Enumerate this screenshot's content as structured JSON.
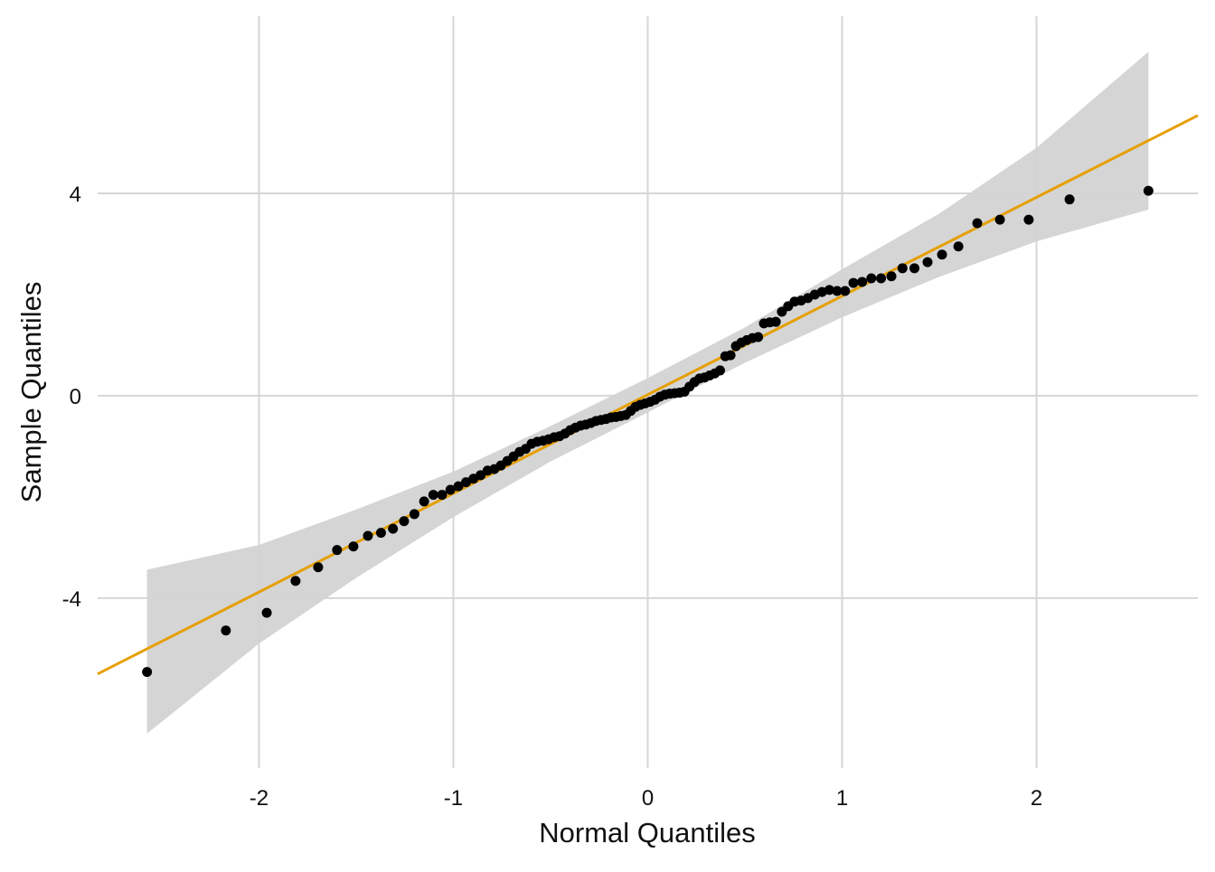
{
  "chart_data": {
    "type": "scatter",
    "title": "",
    "xlabel": "Normal Quantiles",
    "ylabel": "Sample Quantiles",
    "xlim": [
      -2.83,
      2.83
    ],
    "ylim": [
      -7.36,
      7.5
    ],
    "x_ticks": [
      -2,
      -1,
      0,
      1,
      2
    ],
    "x_tick_labels": [
      "-2",
      "-1",
      "0",
      "1",
      "2"
    ],
    "y_ticks": [
      -4,
      0,
      4
    ],
    "y_tick_labels": [
      "-4",
      "0",
      "4"
    ],
    "grid": true,
    "colors": {
      "points": "#000000",
      "reference_line": "#E69F00",
      "band": "#D3D3D3",
      "grid": "#D6D6D6"
    },
    "reference_line": {
      "intercept": 0.02,
      "slope": 1.95
    },
    "confidence_band": {
      "x": [
        -2.576,
        -2.0,
        -1.5,
        -1.0,
        -0.5,
        0,
        0.5,
        1.0,
        1.5,
        2.0,
        2.576
      ],
      "lower": [
        -6.68,
        -4.9,
        -3.6,
        -2.4,
        -1.3,
        -0.33,
        0.65,
        1.55,
        2.35,
        3.05,
        3.68
      ],
      "upper": [
        -3.44,
        -2.95,
        -2.25,
        -1.5,
        -0.6,
        0.35,
        1.35,
        2.5,
        3.6,
        4.9,
        6.8
      ]
    },
    "points": {
      "x": [
        -2.5758,
        -2.1701,
        -1.96,
        -1.8119,
        -1.6954,
        -1.5982,
        -1.5141,
        -1.4395,
        -1.3722,
        -1.3106,
        -1.2536,
        -1.2004,
        -1.1503,
        -1.1031,
        -1.0581,
        -1.0152,
        -0.9741,
        -0.9346,
        -0.8965,
        -0.8596,
        -0.8239,
        -0.7892,
        -0.7554,
        -0.7225,
        -0.6903,
        -0.6588,
        -0.628,
        -0.5978,
        -0.5681,
        -0.5388,
        -0.5101,
        -0.4817,
        -0.4538,
        -0.4261,
        -0.3989,
        -0.3719,
        -0.3451,
        -0.3186,
        -0.2924,
        -0.2663,
        -0.2404,
        -0.2147,
        -0.1891,
        -0.1637,
        -0.1383,
        -0.113,
        -0.0878,
        -0.0627,
        -0.0376,
        -0.0125,
        0.0125,
        0.0376,
        0.0627,
        0.0878,
        0.113,
        0.1383,
        0.1637,
        0.1891,
        0.2147,
        0.2404,
        0.2663,
        0.2924,
        0.3186,
        0.3451,
        0.3719,
        0.3989,
        0.4261,
        0.4538,
        0.4817,
        0.5101,
        0.5388,
        0.5681,
        0.5978,
        0.628,
        0.6588,
        0.6903,
        0.7225,
        0.7554,
        0.7892,
        0.8239,
        0.8596,
        0.8965,
        0.9346,
        0.9741,
        1.0152,
        1.0581,
        1.1031,
        1.1503,
        1.2004,
        1.2536,
        1.3106,
        1.3722,
        1.4395,
        1.5141,
        1.5982,
        1.6954,
        1.8119,
        1.96,
        2.1701,
        2.5758
      ],
      "y": [
        -5.46,
        -4.64,
        -4.29,
        -3.66,
        -3.39,
        -3.05,
        -2.98,
        -2.77,
        -2.71,
        -2.63,
        -2.48,
        -2.34,
        -2.09,
        -1.96,
        -1.96,
        -1.86,
        -1.79,
        -1.71,
        -1.64,
        -1.57,
        -1.48,
        -1.45,
        -1.38,
        -1.29,
        -1.2,
        -1.11,
        -1.05,
        -0.95,
        -0.91,
        -0.89,
        -0.86,
        -0.82,
        -0.8,
        -0.75,
        -0.68,
        -0.63,
        -0.59,
        -0.57,
        -0.54,
        -0.5,
        -0.48,
        -0.46,
        -0.43,
        -0.42,
        -0.4,
        -0.38,
        -0.3,
        -0.22,
        -0.18,
        -0.15,
        -0.12,
        -0.08,
        -0.02,
        0.02,
        0.04,
        0.05,
        0.06,
        0.08,
        0.18,
        0.27,
        0.34,
        0.36,
        0.4,
        0.44,
        0.5,
        0.78,
        0.8,
        0.98,
        1.05,
        1.1,
        1.14,
        1.16,
        1.43,
        1.45,
        1.46,
        1.66,
        1.77,
        1.86,
        1.88,
        1.93,
        2.0,
        2.05,
        2.09,
        2.07,
        2.07,
        2.23,
        2.25,
        2.32,
        2.32,
        2.36,
        2.52,
        2.52,
        2.64,
        2.79,
        2.95,
        3.41,
        3.48,
        3.48,
        3.88,
        4.05
      ]
    }
  }
}
